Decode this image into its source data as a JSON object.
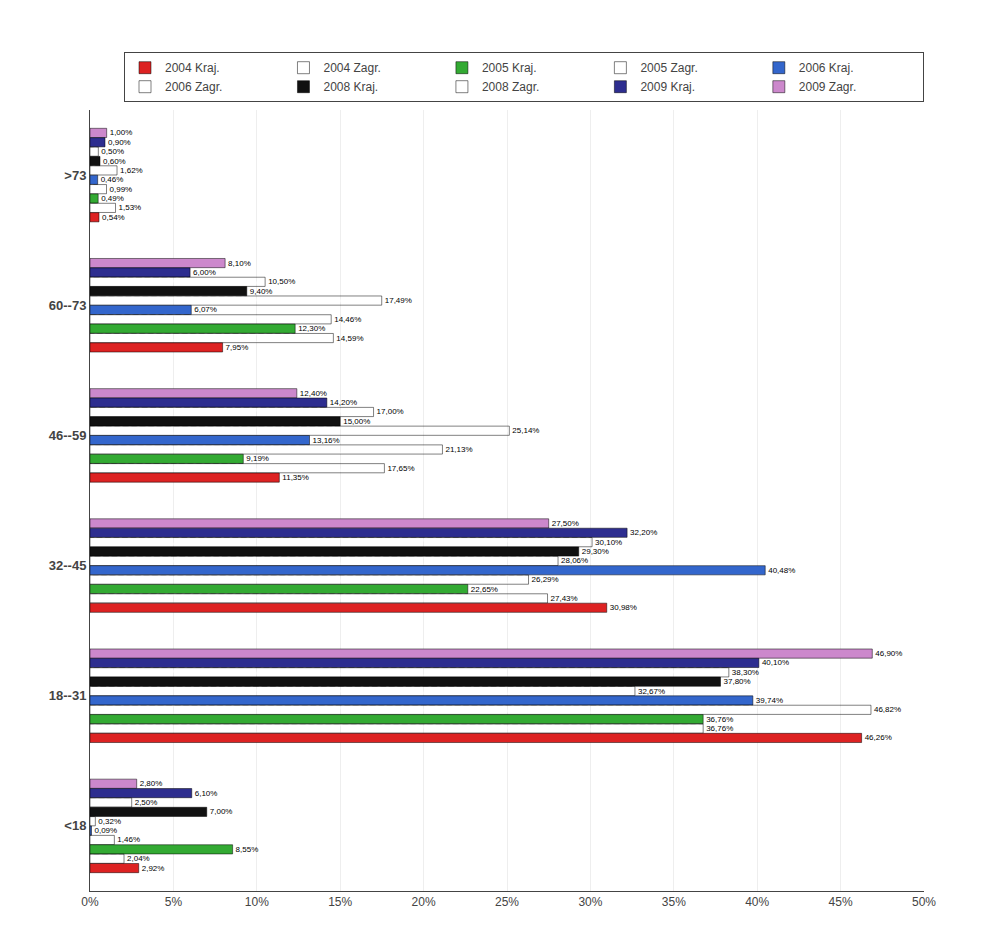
{
  "chart_data": {
    "type": "bar",
    "orientation": "horizontal",
    "categories": [
      ">73",
      "60--73",
      "46--59",
      "32--45",
      "18--31",
      "<18"
    ],
    "series": [
      {
        "name": "2009 Zagr.",
        "color": "#cc88cc",
        "values": [
          1.0,
          8.1,
          12.4,
          27.5,
          46.9,
          2.8
        ],
        "value_labels": [
          "1,00%",
          "8,10%",
          "12,40%",
          "27,50%",
          "46,90%",
          "2,80%"
        ]
      },
      {
        "name": "2009 Kraj.",
        "color": "#2d2d8f",
        "values": [
          0.9,
          6.0,
          14.2,
          32.2,
          40.1,
          6.1
        ],
        "value_labels": [
          "0,90%",
          "6,00%",
          "14,20%",
          "32,20%",
          "40,10%",
          "6,10%"
        ]
      },
      {
        "name": "2008 Zagr.",
        "color": "#222222",
        "marker": "hatched",
        "values": [
          0.5,
          10.5,
          17.0,
          30.1,
          38.3,
          2.5
        ],
        "value_labels": [
          "0,50%",
          "10,50%",
          "17,00%",
          "30,10%",
          "38,30%",
          "2,50%"
        ]
      },
      {
        "name": "2008 Kraj.",
        "color": "#111111",
        "values": [
          0.6,
          9.4,
          15.0,
          29.3,
          37.8,
          7.0
        ],
        "value_labels": [
          "0,60%",
          "9,40%",
          "15,00%",
          "29,30%",
          "37,80%",
          "7,00%"
        ]
      },
      {
        "name": "2006 Zagr.",
        "color": "#5588ff",
        "marker": "hatched",
        "values": [
          1.62,
          17.49,
          25.14,
          28.06,
          32.67,
          0.32
        ],
        "value_labels": [
          "1,62%",
          "17,49%",
          "25,14%",
          "28,06%",
          "32,67%",
          "0,32%"
        ]
      },
      {
        "name": "2006 Kraj.",
        "color": "#3366cc",
        "values": [
          0.46,
          6.07,
          13.16,
          40.48,
          39.74,
          0.09
        ],
        "value_labels": [
          "0,46%",
          "6,07%",
          "13,16%",
          "40,48%",
          "39,74%",
          "0,09%"
        ]
      },
      {
        "name": "2005 Zagr.",
        "color": "#44cc44",
        "marker": "hatched",
        "values": [
          0.99,
          14.46,
          21.13,
          26.29,
          46.82,
          1.46
        ],
        "value_labels": [
          "0,99%",
          "14,46%",
          "21,13%",
          "26,29%",
          "46,82%",
          "1,46%"
        ]
      },
      {
        "name": "2005 Kraj.",
        "color": "#33aa33",
        "values": [
          0.49,
          12.3,
          9.19,
          22.65,
          36.76,
          8.55
        ],
        "value_labels": [
          "0,49%",
          "12,30%",
          "9,19%",
          "22,65%",
          "36,76%",
          "8,55%"
        ]
      },
      {
        "name": "2004 Zagr.",
        "color": "#ee5555",
        "marker": "hatched",
        "values": [
          1.53,
          14.59,
          17.65,
          27.43,
          36.76,
          2.04
        ],
        "value_labels": [
          "1,53%",
          "14,59%",
          "17,65%",
          "27,43%",
          "36,76%",
          "2,04%"
        ]
      },
      {
        "name": "2004 Kraj.",
        "color": "#dd2222",
        "values": [
          0.54,
          7.95,
          11.35,
          30.98,
          46.26,
          2.92
        ],
        "value_labels": [
          "0,54%",
          "7,95%",
          "11,35%",
          "30,98%",
          "46,26%",
          "2,92%"
        ]
      }
    ],
    "xlim": [
      0,
      50
    ],
    "xticks": [
      {
        "value": 0,
        "label": "0%"
      },
      {
        "value": 5,
        "label": "5%"
      },
      {
        "value": 10,
        "label": "10%"
      },
      {
        "value": 15,
        "label": "15%"
      },
      {
        "value": 20,
        "label": "20%"
      },
      {
        "value": 25,
        "label": "25%"
      },
      {
        "value": 30,
        "label": "30%"
      },
      {
        "value": 35,
        "label": "35%"
      },
      {
        "value": 40,
        "label": "40%"
      },
      {
        "value": 45,
        "label": "45%"
      },
      {
        "value": 50,
        "label": "50%"
      }
    ],
    "grid": true,
    "legend": "upper right",
    "data_labels": true
  }
}
